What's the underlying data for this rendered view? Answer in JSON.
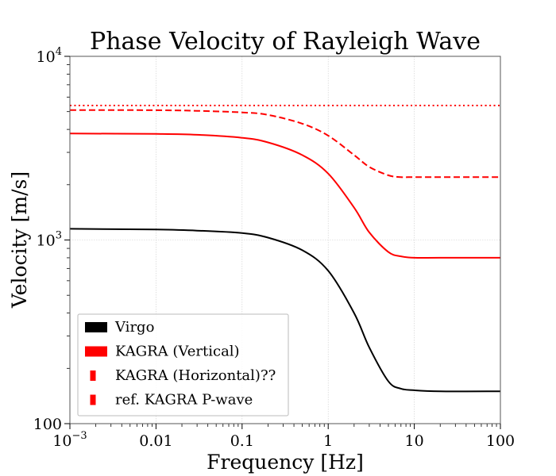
{
  "chart_data": {
    "type": "line",
    "title": "Phase Velocity of Rayleigh Wave",
    "xlabel": "Frequency [Hz]",
    "ylabel": "Velocity [m/s]",
    "xscale": "log",
    "yscale": "log",
    "xlim": [
      0.001,
      100
    ],
    "ylim": [
      100,
      10000
    ],
    "grid": true,
    "legend_position": "lower-left",
    "x_ticks": [
      {
        "value": 0.001,
        "label": "10",
        "exp": "−3"
      },
      {
        "value": 0.01,
        "label": "0.01",
        "exp": ""
      },
      {
        "value": 0.1,
        "label": "0.1",
        "exp": ""
      },
      {
        "value": 1,
        "label": "1",
        "exp": ""
      },
      {
        "value": 10,
        "label": "10",
        "exp": ""
      },
      {
        "value": 100,
        "label": "100",
        "exp": ""
      }
    ],
    "y_ticks": [
      {
        "value": 100,
        "label": "100",
        "exp": ""
      },
      {
        "value": 1000,
        "label": "10",
        "exp": "3"
      },
      {
        "value": 10000,
        "label": "10",
        "exp": "4"
      }
    ],
    "series": [
      {
        "name": "Virgo",
        "color": "#000000",
        "dash": "solid",
        "x": [
          0.001,
          0.01,
          0.03,
          0.1,
          0.2,
          0.5,
          1,
          2,
          3,
          5,
          7,
          10,
          20,
          100
        ],
        "y": [
          1150,
          1140,
          1125,
          1090,
          1030,
          880,
          680,
          400,
          260,
          170,
          155,
          152,
          150,
          150
        ]
      },
      {
        "name": "KAGRA (Vertical)",
        "color": "#ff0000",
        "dash": "solid",
        "x": [
          0.001,
          0.01,
          0.03,
          0.1,
          0.2,
          0.5,
          1,
          2,
          3,
          5,
          7,
          10,
          20,
          100
        ],
        "y": [
          3800,
          3780,
          3740,
          3600,
          3400,
          2900,
          2300,
          1500,
          1100,
          860,
          815,
          800,
          800,
          800
        ]
      },
      {
        "name": "KAGRA (Horizontal)??",
        "color": "#ff0000",
        "dash": "dashed",
        "x": [
          0.001,
          0.01,
          0.03,
          0.1,
          0.2,
          0.5,
          1,
          2,
          3,
          5,
          7,
          10,
          20,
          100
        ],
        "y": [
          5100,
          5090,
          5050,
          4950,
          4800,
          4300,
          3700,
          2900,
          2500,
          2250,
          2200,
          2200,
          2200,
          2200
        ]
      },
      {
        "name": "ref. KAGRA P-wave",
        "color": "#ff0000",
        "dash": "dotted",
        "x": [
          0.001,
          100
        ],
        "y": [
          5400,
          5400
        ]
      }
    ]
  }
}
